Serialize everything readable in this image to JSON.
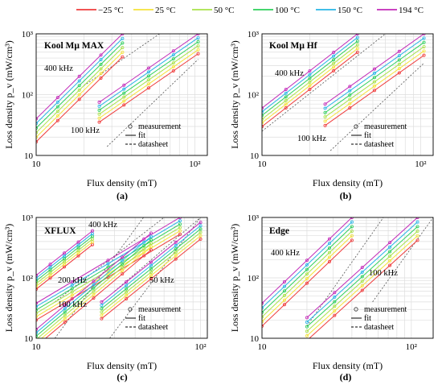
{
  "legend": {
    "entries": [
      {
        "label": "−25 °C",
        "color": "#ef3b3b"
      },
      {
        "label": "25 °C",
        "color": "#f5e23a"
      },
      {
        "label": "50 °C",
        "color": "#a8e24a"
      },
      {
        "label": "100 °C",
        "color": "#2ccf5a"
      },
      {
        "label": "150 °C",
        "color": "#27b4e6"
      },
      {
        "label": "194 °C",
        "color": "#c22ab8"
      }
    ]
  },
  "chart_data": [
    {
      "type": "line",
      "panel_label": "(a)",
      "title": "Kool Mμ MAX",
      "xlabel": "Flux density (mT)",
      "ylabel": "Loss density p_v (mW/cm³)",
      "xscale": "log",
      "yscale": "log",
      "xlim": [
        10,
        120
      ],
      "ylim": [
        10,
        1000
      ],
      "x_ticks": [
        "10",
        "10²"
      ],
      "y_ticks": [
        "10",
        "10²",
        "10³"
      ],
      "grid": true,
      "inner_legend": [
        "measurement",
        "fit",
        "datasheet"
      ],
      "annotations": [
        "400 kHz",
        "100 kHz"
      ],
      "groups": [
        {
          "name": "400 kHz",
          "x": [
            10,
            35
          ],
          "y194": [
            40,
            1000
          ],
          "step": 0.84
        },
        {
          "name": "100 kHz",
          "x": [
            25,
            105
          ],
          "y194": [
            75,
            1000
          ],
          "step": 0.86
        }
      ],
      "datasheet": [
        {
          "x": [
            20,
            60
          ],
          "y": [
            140,
            1000
          ]
        },
        {
          "x": [
            28,
            105
          ],
          "y": [
            14,
            380
          ]
        }
      ]
    },
    {
      "type": "line",
      "panel_label": "(b)",
      "title": "Kool Mμ Hf",
      "xlabel": "Flux density (mT)",
      "ylabel": "Loss density p_v (mW/cm³)",
      "xscale": "log",
      "yscale": "log",
      "xlim": [
        10,
        120
      ],
      "ylim": [
        10,
        1000
      ],
      "x_ticks": [
        "10",
        "10²"
      ],
      "y_ticks": [
        "10",
        "10²",
        "10³"
      ],
      "grid": true,
      "inner_legend": [
        "measurement",
        "fit",
        "datasheet"
      ],
      "annotations": [
        "400 kHz",
        "100 kHz"
      ],
      "groups": [
        {
          "name": "400 kHz",
          "x": [
            10,
            40
          ],
          "y194": [
            60,
            1000
          ],
          "step": 0.87
        },
        {
          "name": "100 kHz",
          "x": [
            25,
            105
          ],
          "y194": [
            70,
            1000
          ],
          "step": 0.85
        }
      ],
      "datasheet": [
        {
          "x": [
            10,
            60
          ],
          "y": [
            25,
            1000
          ]
        },
        {
          "x": [
            27,
            105
          ],
          "y": [
            12,
            330
          ]
        }
      ]
    },
    {
      "type": "line",
      "panel_label": "(c)",
      "title": "XFLUX",
      "xlabel": "Flux density (mT)",
      "ylabel": "Loss density p_v (mW/cm³)",
      "xscale": "log",
      "yscale": "log",
      "xlim": [
        10,
        110
      ],
      "ylim": [
        10,
        1000
      ],
      "x_ticks": [
        "10",
        "10²"
      ],
      "y_ticks": [
        "10",
        "10²",
        "10³"
      ],
      "grid": true,
      "inner_legend": [
        "measurement",
        "fit",
        "datasheet"
      ],
      "annotations": [
        "400 kHz",
        "200 kHz",
        "100 kHz",
        "50 kHz"
      ],
      "groups": [
        {
          "name": "400 kHz",
          "x": [
            10,
            22
          ],
          "y194": [
            110,
            600
          ],
          "step": 0.9
        },
        {
          "name": "200 kHz",
          "x": [
            10,
            75
          ],
          "y194": [
            38,
            1000
          ],
          "step": 0.88
        },
        {
          "name": "100 kHz",
          "x": [
            10,
            50
          ],
          "y194": [
            14,
            550
          ],
          "step": 0.88
        },
        {
          "name": "50 kHz",
          "x": [
            25,
            100
          ],
          "y194": [
            40,
            830
          ],
          "step": 0.88
        }
      ],
      "datasheet": [
        {
          "x": [
            13,
            45
          ],
          "y": [
            10,
            1000
          ]
        },
        {
          "x": [
            28,
            100
          ],
          "y": [
            10,
            1000
          ]
        },
        {
          "x": [
            30,
            100
          ],
          "y": [
            60,
            1000
          ]
        },
        {
          "x": [
            13,
            60
          ],
          "y": [
            40,
            1000
          ]
        }
      ]
    },
    {
      "type": "line",
      "panel_label": "(d)",
      "title": "Edge",
      "xlabel": "Flux density (mT)",
      "ylabel": "Loss density p_v (mW/cm³)",
      "xscale": "log",
      "yscale": "log",
      "xlim": [
        10,
        140
      ],
      "ylim": [
        10,
        1000
      ],
      "x_ticks": [
        "10",
        "10²"
      ],
      "y_ticks": [
        "10",
        "10²",
        "10³"
      ],
      "grid": true,
      "inner_legend": [
        "measurement",
        "fit",
        "datasheet"
      ],
      "annotations": [
        "400 kHz",
        "100 kHz"
      ],
      "groups": [
        {
          "name": "400 kHz",
          "x": [
            10,
            40
          ],
          "y194": [
            38,
            1000
          ],
          "step": 0.84
        },
        {
          "name": "100 kHz",
          "x": [
            20,
            110
          ],
          "y194": [
            22,
            1000
          ],
          "step": 0.84
        }
      ],
      "datasheet": [
        {
          "x": [
            20,
            65
          ],
          "y": [
            16,
            1000
          ]
        },
        {
          "x": [
            55,
            140
          ],
          "y": [
            40,
            1000
          ]
        }
      ]
    }
  ]
}
